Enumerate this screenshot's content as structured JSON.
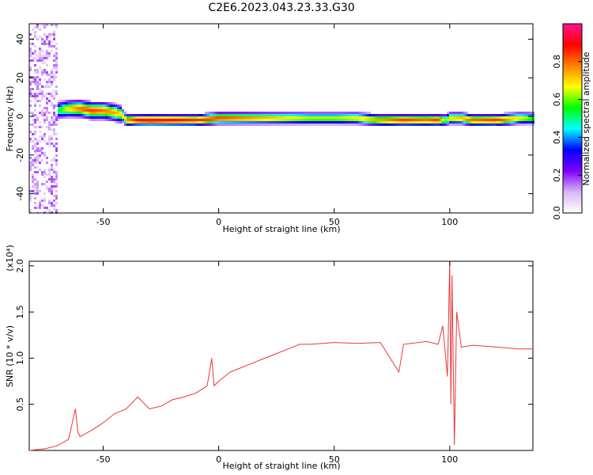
{
  "figure": {
    "title": "C2E6.2023.043.23.33.G30"
  },
  "chart_data": [
    {
      "type": "heatmap",
      "xlabel": "Height of straight line (km)",
      "ylabel": "Frequency (Hz)",
      "xlim": [
        -82,
        136
      ],
      "ylim": [
        -50,
        48
      ],
      "xticks": [
        -50,
        0,
        50,
        100
      ],
      "yticks": [
        40,
        20,
        0,
        -20,
        -40
      ],
      "colorbar": {
        "label": "Normalized spectral amplitude",
        "range": [
          0.0,
          1.0
        ],
        "ticks": [
          0.0,
          0.2,
          0.4,
          0.6,
          0.8
        ],
        "colormap": [
          "#ffffff",
          "#d8b4f8",
          "#8000ff",
          "#0000ff",
          "#00ffff",
          "#00ff00",
          "#ffff00",
          "#ff8000",
          "#ff0000",
          "#ff1493"
        ]
      },
      "ridge": {
        "x": [
          -70,
          -65,
          -60,
          -55,
          -50,
          -45,
          -42,
          -40,
          -35,
          -30,
          -20,
          -10,
          0,
          10,
          20,
          30,
          40,
          50,
          60,
          70,
          80,
          90,
          95,
          98,
          100,
          105,
          110,
          120,
          130,
          136
        ],
        "y": [
          3,
          4,
          4,
          3,
          3,
          2,
          1,
          -2,
          -2,
          -2,
          -2,
          -2,
          -1,
          -1,
          -1,
          -1,
          -1,
          -1,
          -1,
          -2,
          -2,
          -2,
          -2,
          -2,
          -1,
          -1,
          -2,
          -2,
          -1,
          -1
        ],
        "amplitude": [
          0.5,
          0.7,
          0.8,
          0.85,
          0.8,
          0.75,
          0.7,
          0.75,
          0.9,
          0.95,
          0.9,
          0.85,
          0.85,
          0.8,
          0.75,
          0.7,
          0.65,
          0.65,
          0.7,
          0.75,
          0.85,
          0.8,
          0.85,
          0.6,
          0.7,
          0.75,
          0.8,
          0.85,
          0.7,
          0.6
        ]
      }
    },
    {
      "type": "line",
      "xlabel": "Height of straight line (km)",
      "ylabel": "SNR (10 * v/v)",
      "yscale_label": "(x10⁴)",
      "xlim": [
        -82,
        136
      ],
      "ylim": [
        0.0,
        2.05
      ],
      "xticks": [
        -50,
        0,
        50,
        100
      ],
      "yticks": [
        0.5,
        1.0,
        1.5,
        2.0
      ],
      "series": [
        {
          "color": "#e8373a",
          "x": [
            -82,
            -75,
            -70,
            -65,
            -62,
            -61,
            -60,
            -55,
            -50,
            -45,
            -40,
            -35,
            -30,
            -25,
            -20,
            -15,
            -10,
            -5,
            -3,
            -2,
            0,
            5,
            10,
            15,
            20,
            25,
            30,
            35,
            40,
            50,
            60,
            70,
            78,
            80,
            90,
            95,
            97,
            99,
            100,
            100.5,
            101,
            102,
            103,
            105,
            110,
            120,
            130,
            136
          ],
          "y": [
            0.0,
            0.02,
            0.05,
            0.12,
            0.45,
            0.2,
            0.15,
            0.22,
            0.3,
            0.4,
            0.45,
            0.58,
            0.45,
            0.48,
            0.55,
            0.58,
            0.62,
            0.7,
            1.0,
            0.7,
            0.75,
            0.85,
            0.9,
            0.95,
            1.0,
            1.05,
            1.1,
            1.15,
            1.15,
            1.17,
            1.16,
            1.17,
            0.85,
            1.15,
            1.18,
            1.15,
            1.35,
            0.8,
            2.05,
            0.5,
            1.9,
            0.06,
            1.5,
            1.12,
            1.14,
            1.12,
            1.1,
            1.1
          ]
        }
      ]
    }
  ]
}
